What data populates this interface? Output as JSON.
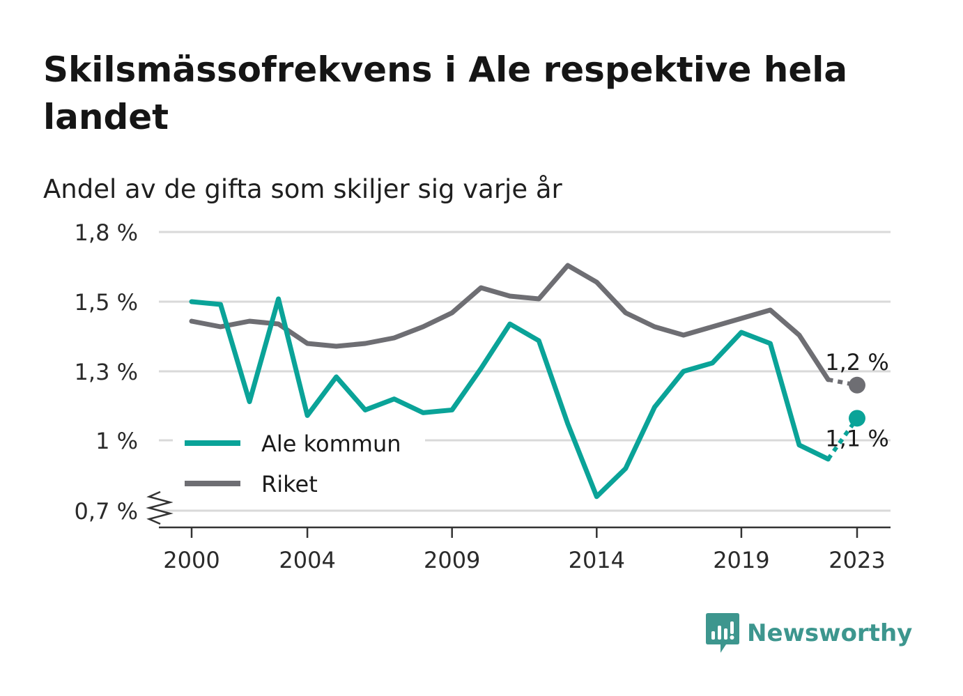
{
  "header": {
    "title": "Skilsmässofrekvens i Ale respektive hela landet",
    "subtitle": "Andel av de gifta som skiljer sig varje år"
  },
  "brand": {
    "name": "Newsworthy",
    "icon": "newsworthy-logo-icon",
    "color": "#3d968e"
  },
  "chart_data": {
    "type": "line",
    "x": [
      2000,
      2001,
      2002,
      2003,
      2004,
      2005,
      2006,
      2007,
      2008,
      2009,
      2010,
      2011,
      2012,
      2013,
      2014,
      2015,
      2016,
      2017,
      2018,
      2019,
      2020,
      2021,
      2022,
      2023
    ],
    "series": [
      {
        "name": "Ale kommun",
        "color": "#0aa398",
        "values": [
          1.5,
          1.49,
          1.14,
          1.51,
          1.09,
          1.23,
          1.11,
          1.15,
          1.1,
          1.11,
          1.26,
          1.42,
          1.36,
          1.06,
          0.76,
          0.88,
          1.12,
          1.25,
          1.28,
          1.39,
          1.35,
          0.98,
          0.92,
          1.08
        ]
      },
      {
        "name": "Riket",
        "color": "#6e6e73",
        "values": [
          1.43,
          1.41,
          1.43,
          1.42,
          1.35,
          1.34,
          1.35,
          1.37,
          1.41,
          1.46,
          1.55,
          1.52,
          1.51,
          1.63,
          1.57,
          1.46,
          1.41,
          1.38,
          1.41,
          1.44,
          1.47,
          1.38,
          1.22,
          1.2
        ]
      }
    ],
    "y_ticks": [
      "0,7 %",
      "1 %",
      "1,3 %",
      "1,5 %",
      "1,8 %"
    ],
    "x_ticks": [
      "2000",
      "2004",
      "2009",
      "2014",
      "2019",
      "2023"
    ],
    "annotations": [
      {
        "series": "Riket",
        "year": 2023,
        "label": "1,2 %"
      },
      {
        "series": "Ale kommun",
        "year": 2023,
        "label": "1,1 %"
      }
    ],
    "legend": {
      "position": "bottom-left",
      "entries": [
        "Ale kommun",
        "Riket"
      ]
    },
    "grid": true,
    "axis_break": true,
    "last_segment_dashed": true
  }
}
